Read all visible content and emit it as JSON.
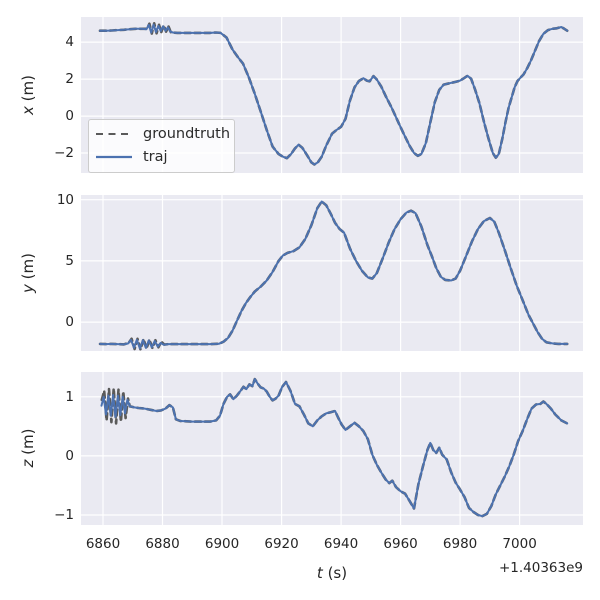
{
  "figure": {
    "bg_color": "#ffffff",
    "axes_bg_color": "#eaeaf2",
    "grid_color": "#ffffff",
    "text_color": "#262626",
    "traj_color": "#4c72b0",
    "groundtruth_color": "#5a5a5a"
  },
  "xaxis": {
    "label": "t (s)",
    "label_var": "t",
    "label_unit": "(s)",
    "offset_text": "+1.40363e9",
    "ticks": [
      6860,
      6880,
      6900,
      6920,
      6940,
      6960,
      6980,
      7000
    ],
    "tick_labels": [
      "6860",
      "6880",
      "6900",
      "6920",
      "6940",
      "6960",
      "6980",
      "7000"
    ],
    "xlim": [
      6852.6,
      7021.3
    ]
  },
  "legend": {
    "items": [
      {
        "label": "groundtruth",
        "color": "#5a5a5a",
        "dash": true
      },
      {
        "label": "traj",
        "color": "#4c72b0",
        "dash": false
      }
    ]
  },
  "chart_data": [
    {
      "type": "line",
      "ylabel": "x (m)",
      "ylabel_var": "x",
      "ylabel_unit": "(m)",
      "ylim": [
        -3.08,
        5.36
      ],
      "yticks": [
        -2,
        0,
        2,
        4
      ],
      "ytick_labels": [
        "−2",
        "0",
        "2",
        "4"
      ],
      "series": {
        "traj": {
          "t": [
            6859,
            6861,
            6863,
            6865,
            6867,
            6869,
            6871,
            6873,
            6874.6,
            6875.4,
            6876.2,
            6877.0,
            6877.8,
            6878.6,
            6879.4,
            6880.2,
            6881.0,
            6881.8,
            6882.6,
            6883.5,
            6885,
            6887,
            6890,
            6893,
            6896,
            6898,
            6899.5,
            6901.5,
            6903.5,
            6905.5,
            6907,
            6909,
            6911,
            6913,
            6915,
            6917,
            6919,
            6920.5,
            6921.8,
            6923.2,
            6924.5,
            6925.7,
            6927,
            6928.5,
            6930,
            6931,
            6932.2,
            6933.5,
            6935,
            6937,
            6938.5,
            6940,
            6941.5,
            6943,
            6944.5,
            6946,
            6947.5,
            6948.6,
            6949.6,
            6950.9,
            6952,
            6953.5,
            6955,
            6957,
            6959,
            6961,
            6963,
            6964.5,
            6965.8,
            6967,
            6968.5,
            6970,
            6971.5,
            6973,
            6974.5,
            6976.5,
            6978.5,
            6980,
            6981.3,
            6982.5,
            6983.7,
            6985,
            6986.5,
            6988,
            6989.5,
            6991,
            6992,
            6993,
            6994.2,
            6995.3,
            6996.3,
            6997.3,
            6998.3,
            6999.3,
            7000.3,
            7001.3,
            7002.5,
            7003.8,
            7005.2,
            7006.5,
            7008,
            7009.5,
            7011,
            7012.5,
            7014,
            7015,
            7016
          ],
          "v": [
            4.62,
            4.62,
            4.63,
            4.65,
            4.67,
            4.7,
            4.72,
            4.72,
            4.7,
            4.93,
            4.52,
            4.95,
            4.55,
            4.88,
            4.6,
            4.85,
            4.62,
            4.8,
            4.57,
            4.52,
            4.5,
            4.5,
            4.5,
            4.5,
            4.5,
            4.52,
            4.5,
            4.25,
            3.6,
            3.15,
            2.85,
            2.1,
            1.2,
            0.25,
            -0.75,
            -1.65,
            -2.05,
            -2.2,
            -2.28,
            -2.05,
            -1.75,
            -1.55,
            -1.72,
            -2.1,
            -2.5,
            -2.62,
            -2.5,
            -2.2,
            -1.6,
            -0.95,
            -0.75,
            -0.58,
            -0.15,
            0.85,
            1.55,
            1.9,
            2.05,
            1.92,
            1.88,
            2.16,
            1.98,
            1.6,
            1.08,
            0.45,
            -0.25,
            -0.95,
            -1.6,
            -2.0,
            -2.15,
            -2.05,
            -1.45,
            -0.35,
            0.75,
            1.42,
            1.7,
            1.78,
            1.85,
            1.92,
            2.05,
            2.18,
            2.02,
            1.45,
            0.7,
            -0.3,
            -1.2,
            -2.0,
            -2.25,
            -2.05,
            -1.2,
            -0.3,
            0.45,
            1.0,
            1.55,
            1.9,
            2.08,
            2.25,
            2.58,
            3.0,
            3.55,
            4.05,
            4.45,
            4.65,
            4.72,
            4.75,
            4.82,
            4.72,
            4.62
          ]
        },
        "gt_override": {
          "t_start": 6874.5,
          "t_end": 6883.0,
          "t": [
            6874.8,
            6875.6,
            6876.4,
            6877.2,
            6878.0,
            6878.8,
            6879.6,
            6880.4,
            6881.2,
            6882.0,
            6882.8
          ],
          "v": [
            4.72,
            5.0,
            4.46,
            5.02,
            4.48,
            4.94,
            4.55,
            4.91,
            4.57,
            4.85,
            4.52
          ]
        }
      }
    },
    {
      "type": "line",
      "ylabel": "y (m)",
      "ylabel_var": "y",
      "ylabel_unit": "(m)",
      "ylim": [
        -2.36,
        10.38
      ],
      "yticks": [
        0,
        5,
        10
      ],
      "ytick_labels": [
        "0",
        "5",
        "10"
      ],
      "series": {
        "traj": {
          "t": [
            6859,
            6861,
            6863,
            6865,
            6867,
            6868.4,
            6869.4,
            6870.4,
            6871.4,
            6872.4,
            6873.4,
            6874.4,
            6875.4,
            6876.4,
            6877.4,
            6878.4,
            6879.4,
            6880.4,
            6882,
            6884,
            6887,
            6890,
            6893,
            6896,
            6899,
            6900.5,
            6902,
            6903.5,
            6905,
            6906.5,
            6908,
            6909.5,
            6911,
            6913,
            6915,
            6917,
            6919,
            6920.5,
            6922,
            6924,
            6926,
            6928,
            6930,
            6932,
            6933.5,
            6935,
            6936.5,
            6938,
            6939.5,
            6941,
            6943,
            6945,
            6947,
            6949,
            6950.5,
            6952,
            6954,
            6956,
            6958,
            6960,
            6962,
            6963.5,
            6965,
            6967,
            6969,
            6970.5,
            6972,
            6973.5,
            6975,
            6977,
            6978.5,
            6980,
            6982,
            6984,
            6986,
            6988,
            6990,
            6991.5,
            6993,
            6995,
            6997,
            6999,
            7001,
            7003,
            7004.5,
            7006,
            7007.5,
            7009,
            7011,
            7013,
            7014.5,
            7016
          ],
          "v": [
            -1.78,
            -1.8,
            -1.78,
            -1.8,
            -1.82,
            -1.75,
            -1.45,
            -2.1,
            -1.45,
            -2.15,
            -1.48,
            -2.1,
            -1.5,
            -2.05,
            -1.55,
            -2.0,
            -1.7,
            -1.85,
            -1.8,
            -1.8,
            -1.8,
            -1.8,
            -1.8,
            -1.8,
            -1.76,
            -1.6,
            -1.3,
            -0.7,
            0.1,
            0.9,
            1.55,
            2.05,
            2.5,
            2.9,
            3.4,
            4.1,
            5.0,
            5.45,
            5.65,
            5.8,
            6.1,
            6.8,
            7.9,
            9.3,
            9.85,
            9.55,
            8.85,
            8.1,
            7.6,
            7.3,
            6.0,
            5.0,
            4.2,
            3.65,
            3.55,
            4.0,
            5.2,
            6.5,
            7.6,
            8.4,
            8.95,
            9.1,
            8.9,
            7.8,
            6.3,
            5.4,
            4.4,
            3.7,
            3.45,
            3.4,
            3.55,
            4.2,
            5.4,
            6.6,
            7.6,
            8.25,
            8.5,
            8.2,
            7.3,
            5.9,
            4.4,
            3.0,
            1.8,
            0.6,
            -0.1,
            -0.8,
            -1.35,
            -1.65,
            -1.74,
            -1.78,
            -1.78,
            -1.78
          ]
        },
        "gt_override": {
          "t_start": 6868.2,
          "t_end": 6880.8,
          "t": [
            6868.6,
            6869.6,
            6870.6,
            6871.6,
            6872.6,
            6873.6,
            6874.6,
            6875.6,
            6876.6,
            6877.6,
            6878.6,
            6879.6,
            6880.6
          ],
          "v": [
            -1.7,
            -1.36,
            -2.2,
            -1.36,
            -2.24,
            -1.38,
            -2.18,
            -1.42,
            -2.12,
            -1.48,
            -2.06,
            -1.6,
            -1.84
          ]
        }
      }
    },
    {
      "type": "line",
      "ylabel": "z (m)",
      "ylabel_var": "z",
      "ylabel_unit": "(m)",
      "ylim": [
        -1.17,
        1.42
      ],
      "yticks": [
        -1,
        0,
        1
      ],
      "ytick_labels": [
        "−1",
        "0",
        "1"
      ],
      "series": {
        "traj": {
          "t": [
            6859.5,
            6860.2,
            6861.0,
            6861.8,
            6862.6,
            6863.4,
            6864.2,
            6865.0,
            6865.8,
            6866.6,
            6867.4,
            6868.2,
            6869,
            6870.5,
            6872,
            6874,
            6876,
            6878,
            6879.5,
            6881,
            6882.3,
            6883.5,
            6884.5,
            6886,
            6888,
            6890,
            6892,
            6894,
            6896,
            6898,
            6899.3,
            6900.5,
            6901.7,
            6902.7,
            6903.8,
            6905,
            6906.2,
            6907.2,
            6908.2,
            6909.2,
            6910.2,
            6911,
            6912,
            6913,
            6914,
            6915,
            6916,
            6917,
            6918,
            6919,
            6920.2,
            6921.5,
            6923,
            6924.5,
            6926,
            6927.5,
            6929,
            6930.5,
            6932,
            6933.5,
            6935,
            6936.5,
            6938,
            6939,
            6940.2,
            6941.5,
            6943,
            6944.5,
            6946,
            6947.5,
            6949,
            6950.5,
            6952,
            6953.5,
            6955,
            6956.2,
            6957.2,
            6958.5,
            6960,
            6961.5,
            6963,
            6964.5,
            6966,
            6967.5,
            6969,
            6970,
            6971,
            6972,
            6973,
            6974,
            6975.5,
            6977,
            6978.5,
            6980,
            6981.5,
            6983,
            6984.5,
            6986,
            6987.5,
            6989,
            6990.5,
            6992,
            6993.5,
            6995,
            6996.5,
            6998,
            6999.5,
            7001,
            7002.5,
            7004,
            7005.5,
            7007,
            7008,
            7009,
            7010.5,
            7012,
            7014,
            7016
          ],
          "v": [
            0.85,
            1.0,
            0.7,
            1.02,
            0.68,
            1.03,
            0.66,
            1.02,
            0.69,
            1.0,
            0.72,
            0.95,
            0.84,
            0.82,
            0.81,
            0.8,
            0.78,
            0.76,
            0.77,
            0.8,
            0.86,
            0.82,
            0.62,
            0.59,
            0.585,
            0.58,
            0.58,
            0.58,
            0.58,
            0.6,
            0.68,
            0.88,
            1.0,
            1.04,
            0.96,
            1.02,
            1.1,
            1.17,
            1.13,
            1.21,
            1.18,
            1.3,
            1.22,
            1.16,
            1.14,
            1.09,
            1.0,
            0.94,
            0.97,
            1.02,
            1.17,
            1.25,
            1.1,
            0.88,
            0.84,
            0.7,
            0.55,
            0.5,
            0.6,
            0.67,
            0.72,
            0.74,
            0.76,
            0.65,
            0.53,
            0.44,
            0.5,
            0.56,
            0.5,
            0.42,
            0.28,
            0.02,
            -0.15,
            -0.28,
            -0.4,
            -0.46,
            -0.42,
            -0.53,
            -0.6,
            -0.64,
            -0.76,
            -0.89,
            -0.48,
            -0.18,
            0.1,
            0.22,
            0.1,
            0.05,
            0.14,
            0.02,
            -0.06,
            -0.28,
            -0.45,
            -0.57,
            -0.7,
            -0.88,
            -0.95,
            -1.0,
            -1.02,
            -0.98,
            -0.85,
            -0.65,
            -0.5,
            -0.35,
            -0.18,
            0.02,
            0.25,
            0.42,
            0.62,
            0.8,
            0.87,
            0.88,
            0.92,
            0.88,
            0.8,
            0.7,
            0.6,
            0.55
          ]
        },
        "gt_override": {
          "t_start": 6859.3,
          "t_end": 6868.5,
          "t": [
            6859.6,
            6860.4,
            6861.2,
            6862.0,
            6862.8,
            6863.6,
            6864.4,
            6865.2,
            6866.0,
            6866.8,
            6867.6,
            6868.4
          ],
          "v": [
            0.95,
            1.1,
            0.6,
            1.13,
            0.57,
            1.14,
            0.55,
            1.12,
            0.58,
            1.09,
            0.64,
            0.97
          ]
        }
      }
    }
  ]
}
